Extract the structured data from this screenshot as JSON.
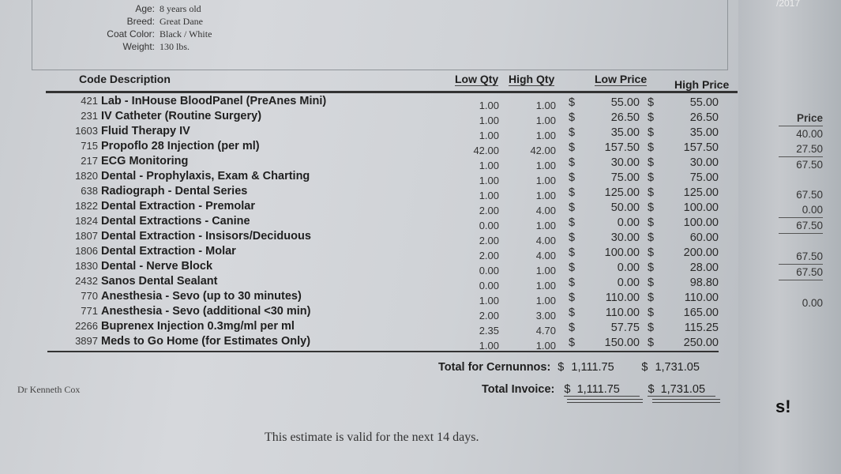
{
  "patient": [
    {
      "label": "Age:",
      "value": "8 years old"
    },
    {
      "label": "Breed:",
      "value": "Great Dane"
    },
    {
      "label": "Coat Color:",
      "value": "Black / White"
    },
    {
      "label": "Weight:",
      "value": "130 lbs."
    }
  ],
  "headers": {
    "code_description": "Code Description",
    "low_qty": "Low Qty",
    "high_qty": "High Qty",
    "low_price": "Low Price",
    "high_price": "High Price"
  },
  "items": [
    {
      "code": "421",
      "desc": "Lab - InHouse BloodPanel (PreAnes Mini)",
      "low_qty": "1.00",
      "high_qty": "1.00",
      "low_price": "55.00",
      "high_price": "55.00"
    },
    {
      "code": "231",
      "desc": "IV Catheter (Routine Surgery)",
      "low_qty": "1.00",
      "high_qty": "1.00",
      "low_price": "26.50",
      "high_price": "26.50"
    },
    {
      "code": "1603",
      "desc": "Fluid Therapy IV",
      "low_qty": "1.00",
      "high_qty": "1.00",
      "low_price": "35.00",
      "high_price": "35.00"
    },
    {
      "code": "715",
      "desc": "Propoflo 28 Injection (per ml)",
      "low_qty": "42.00",
      "high_qty": "42.00",
      "low_price": "157.50",
      "high_price": "157.50"
    },
    {
      "code": "217",
      "desc": "ECG Monitoring",
      "low_qty": "1.00",
      "high_qty": "1.00",
      "low_price": "30.00",
      "high_price": "30.00"
    },
    {
      "code": "1820",
      "desc": "Dental - Prophylaxis, Exam & Charting",
      "low_qty": "1.00",
      "high_qty": "1.00",
      "low_price": "75.00",
      "high_price": "75.00"
    },
    {
      "code": "638",
      "desc": "Radiograph - Dental  Series",
      "low_qty": "1.00",
      "high_qty": "1.00",
      "low_price": "125.00",
      "high_price": "125.00"
    },
    {
      "code": "1822",
      "desc": "Dental Extraction - Premolar",
      "low_qty": "2.00",
      "high_qty": "4.00",
      "low_price": "50.00",
      "high_price": "100.00"
    },
    {
      "code": "1824",
      "desc": "Dental Extractions - Canine",
      "low_qty": "0.00",
      "high_qty": "1.00",
      "low_price": "0.00",
      "high_price": "100.00"
    },
    {
      "code": "1807",
      "desc": "Dental Extraction - Insisors/Deciduous",
      "low_qty": "2.00",
      "high_qty": "4.00",
      "low_price": "30.00",
      "high_price": "60.00"
    },
    {
      "code": "1806",
      "desc": "Dental Extraction - Molar",
      "low_qty": "2.00",
      "high_qty": "4.00",
      "low_price": "100.00",
      "high_price": "200.00"
    },
    {
      "code": "1830",
      "desc": "Dental - Nerve Block",
      "low_qty": "0.00",
      "high_qty": "1.00",
      "low_price": "0.00",
      "high_price": "28.00"
    },
    {
      "code": "2432",
      "desc": "Sanos Dental Sealant",
      "low_qty": "0.00",
      "high_qty": "1.00",
      "low_price": "0.00",
      "high_price": "98.80"
    },
    {
      "code": "770",
      "desc": "Anesthesia - Sevo  (up to 30 minutes)",
      "low_qty": "1.00",
      "high_qty": "1.00",
      "low_price": "110.00",
      "high_price": "110.00"
    },
    {
      "code": "771",
      "desc": "Anesthesia - Sevo (additional <30 min)",
      "low_qty": "2.00",
      "high_qty": "3.00",
      "low_price": "110.00",
      "high_price": "165.00"
    },
    {
      "code": "2266",
      "desc": "Buprenex Injection 0.3mg/ml  per ml",
      "low_qty": "2.35",
      "high_qty": "4.70",
      "low_price": "57.75",
      "high_price": "115.25"
    },
    {
      "code": "3897",
      "desc": "Meds to Go Home (for Estimates Only)",
      "low_qty": "1.00",
      "high_qty": "1.00",
      "low_price": "150.00",
      "high_price": "250.00"
    }
  ],
  "currency": "$",
  "totals": {
    "patient_label": "Total for Cernunnos:",
    "patient_low": "1,111.75",
    "patient_high": "1,731.05",
    "invoice_label": "Total Invoice:",
    "invoice_low": "1,111.75",
    "invoice_high": "1,731.05"
  },
  "doctor": "Dr Kenneth Cox",
  "validity": "This estimate is valid for the next 14 days.",
  "right_sheet": {
    "year": "/2017",
    "price_header": "Price",
    "prices": [
      "40.00",
      "27.50",
      "67.50",
      "",
      "67.50",
      "0.00",
      "67.50",
      "",
      "67.50",
      "67.50",
      "",
      "0.00"
    ],
    "fragment": "s!"
  }
}
